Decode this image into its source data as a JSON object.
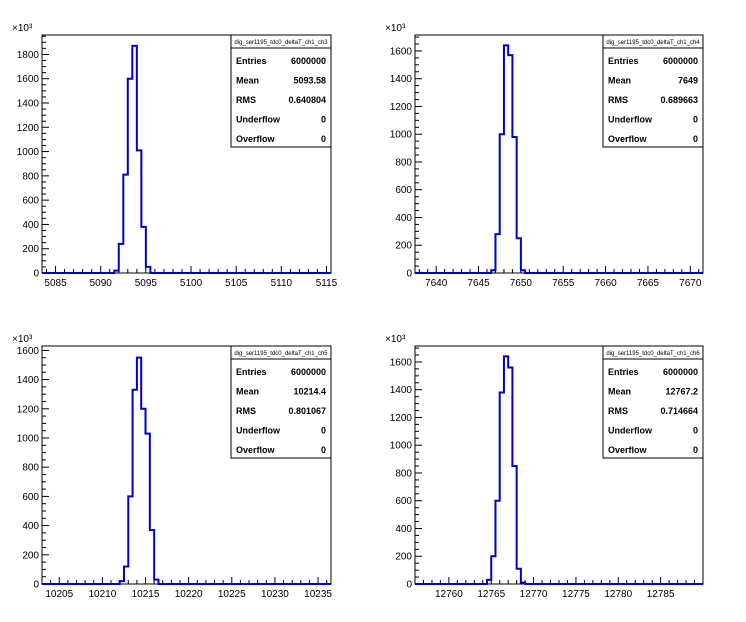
{
  "chart_data": [
    {
      "type": "bar",
      "histogram_name": "dig_ser1195_tdc0_deltaT_ch1_ch3",
      "x_ticks": [
        "5085",
        "5090",
        "5095",
        "5100",
        "5105",
        "5110",
        "5115"
      ],
      "y_ticks": [
        "0",
        "200",
        "400",
        "600",
        "800",
        "1000",
        "1200",
        "1400",
        "1600",
        "1800"
      ],
      "y_multiplier": "×10³",
      "xlim": [
        5083.5,
        5115.5
      ],
      "ylim": [
        0,
        1960
      ],
      "bins": {
        "x": [
          5091,
          5091.5,
          5092,
          5092.5,
          5093,
          5093.5,
          5094,
          5094.5,
          5095,
          5095.5
        ],
        "y": [
          0,
          20,
          240,
          810,
          1600,
          1870,
          1010,
          380,
          50,
          0
        ]
      },
      "stats": [
        {
          "label": "Entries",
          "value": "6000000"
        },
        {
          "label": "Mean",
          "value": "5093.58"
        },
        {
          "label": "RMS",
          "value": "0.640804"
        },
        {
          "label": "Underflow",
          "value": "0"
        },
        {
          "label": "Overflow",
          "value": "0"
        }
      ]
    },
    {
      "type": "bar",
      "histogram_name": "dig_ser1195_tdc0_deltaT_ch1_ch4",
      "x_ticks": [
        "7640",
        "7645",
        "7650",
        "7655",
        "7660",
        "7665",
        "7670"
      ],
      "y_ticks": [
        "0",
        "200",
        "400",
        "600",
        "800",
        "1000",
        "1200",
        "1400",
        "1600"
      ],
      "y_multiplier": "×10³",
      "xlim": [
        7637.5,
        7671.5
      ],
      "ylim": [
        0,
        1715
      ],
      "bins": {
        "x": [
          7646,
          7646.5,
          7647,
          7647.5,
          7648,
          7648.5,
          7649,
          7649.5,
          7650,
          7650.5,
          7651
        ],
        "y": [
          0,
          20,
          280,
          1000,
          1640,
          1570,
          980,
          250,
          20,
          0,
          0
        ]
      },
      "stats": [
        {
          "label": "Entries",
          "value": "6000000"
        },
        {
          "label": "Mean",
          "value": "7649"
        },
        {
          "label": "RMS",
          "value": "0.689663"
        },
        {
          "label": "Underflow",
          "value": "0"
        },
        {
          "label": "Overflow",
          "value": "0"
        }
      ]
    },
    {
      "type": "bar",
      "histogram_name": "dig_ser1195_tdc0_deltaT_ch1_ch5",
      "x_ticks": [
        "10205",
        "10210",
        "10215",
        "10220",
        "10225",
        "10230",
        "10235"
      ],
      "y_ticks": [
        "0",
        "200",
        "400",
        "600",
        "800",
        "1000",
        "1200",
        "1400",
        "1600"
      ],
      "y_multiplier": "×10³",
      "xlim": [
        10203,
        10236.5
      ],
      "ylim": [
        0,
        1630
      ],
      "bins": {
        "x": [
          10212,
          10212.5,
          10213,
          10213.5,
          10214,
          10214.5,
          10215,
          10215.5,
          10216,
          10216.5
        ],
        "y": [
          20,
          120,
          600,
          1330,
          1550,
          1200,
          1030,
          370,
          30,
          0
        ]
      },
      "stats": [
        {
          "label": "Entries",
          "value": "6000000"
        },
        {
          "label": "Mean",
          "value": "10214.4"
        },
        {
          "label": "RMS",
          "value": "0.801067"
        },
        {
          "label": "Underflow",
          "value": "0"
        },
        {
          "label": "Overflow",
          "value": "0"
        }
      ]
    },
    {
      "type": "bar",
      "histogram_name": "dig_ser1195_tdc0_deltaT_ch1_ch6",
      "x_ticks": [
        "12760",
        "12765",
        "12770",
        "12775",
        "12780",
        "12785"
      ],
      "y_ticks": [
        "0",
        "200",
        "400",
        "600",
        "800",
        "1000",
        "1200",
        "1400",
        "1600"
      ],
      "y_multiplier": "×10³",
      "xlim": [
        12756,
        12790
      ],
      "ylim": [
        0,
        1715
      ],
      "bins": {
        "x": [
          12764.5,
          12765,
          12765.5,
          12766,
          12766.5,
          12767,
          12767.5,
          12768,
          12768.5,
          12769
        ],
        "y": [
          30,
          200,
          600,
          1380,
          1640,
          1560,
          850,
          110,
          10,
          0
        ]
      },
      "stats": [
        {
          "label": "Entries",
          "value": "6000000"
        },
        {
          "label": "Mean",
          "value": "12767.2"
        },
        {
          "label": "RMS",
          "value": "0.714664"
        },
        {
          "label": "Underflow",
          "value": "0"
        },
        {
          "label": "Overflow",
          "value": "0"
        }
      ]
    }
  ]
}
